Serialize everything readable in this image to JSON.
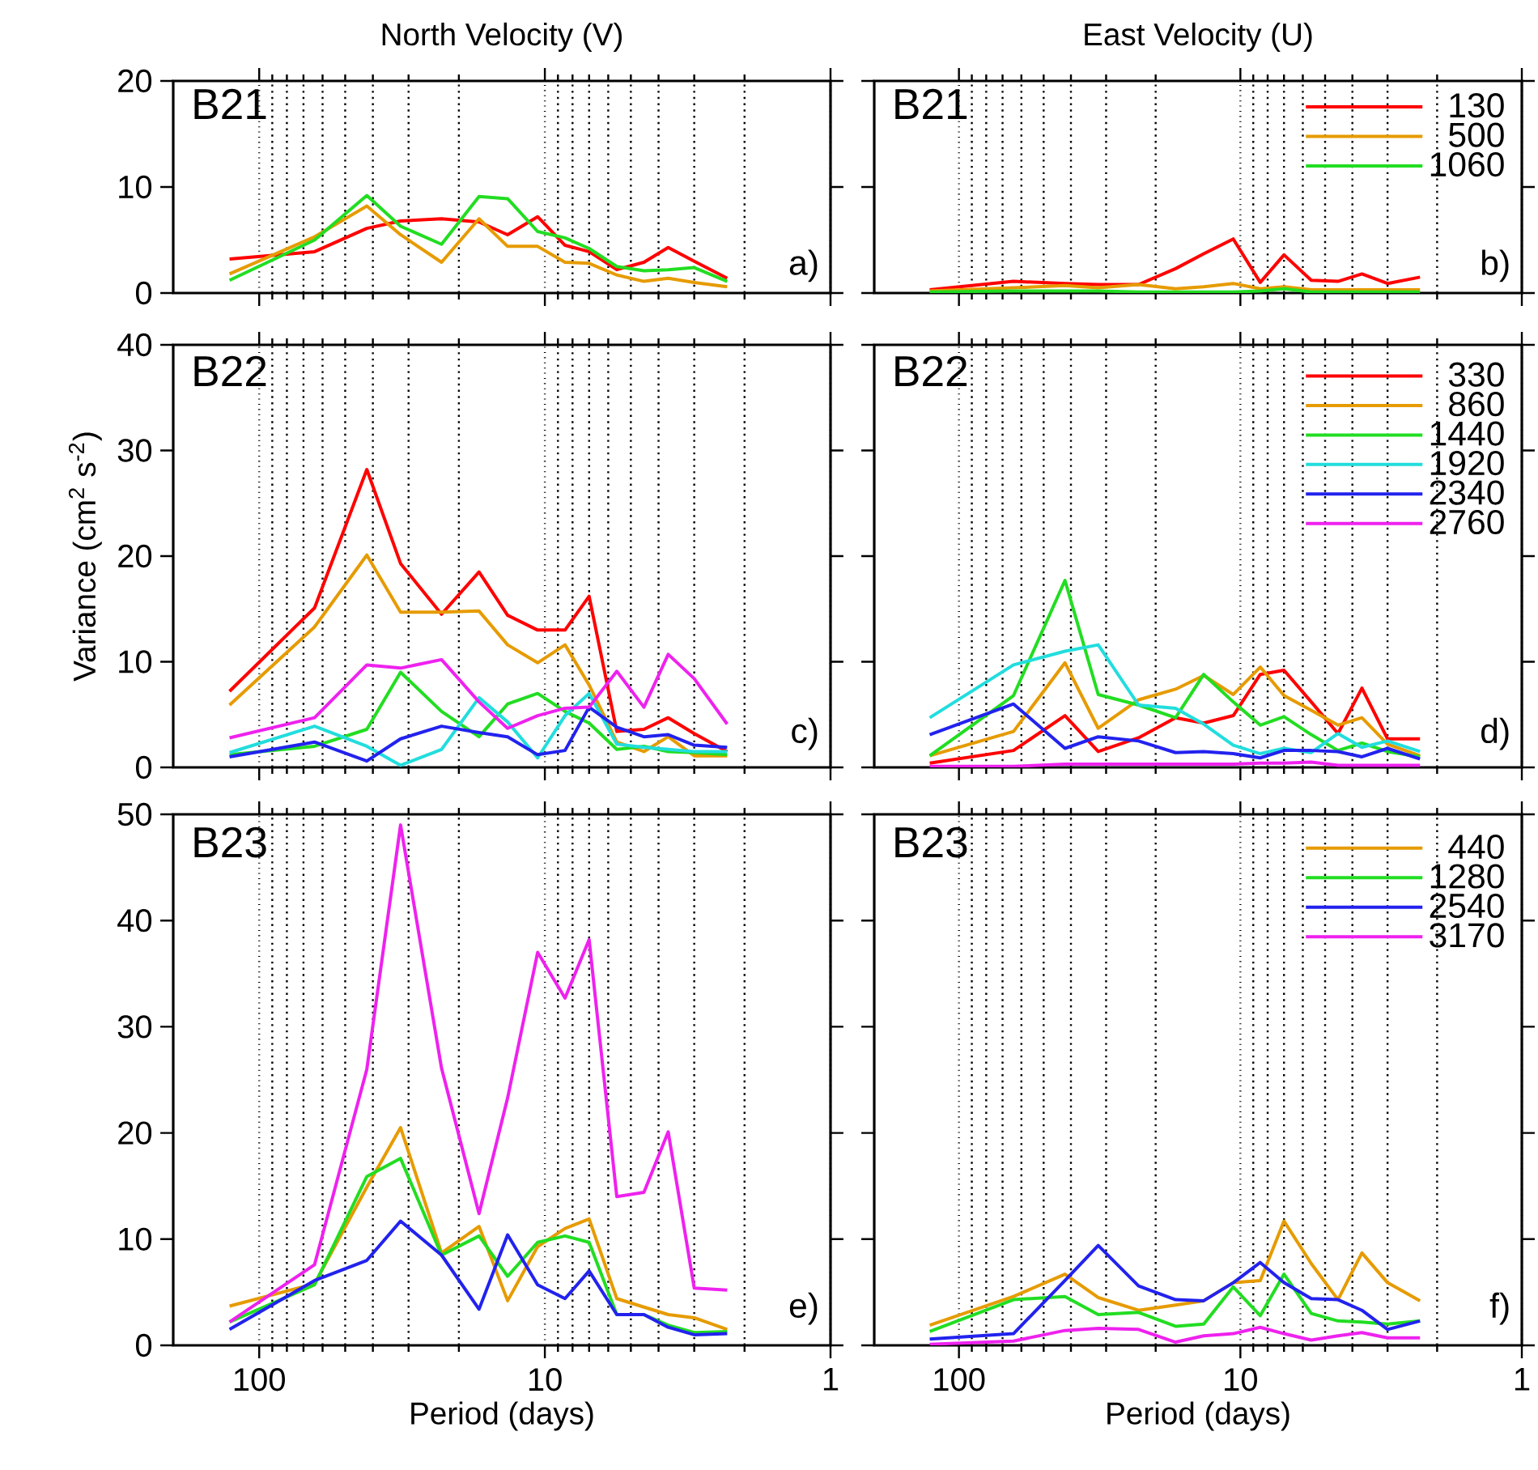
{
  "chart_data": [
    {
      "type": "line",
      "title": "North Velocity (V)",
      "x": [
        127,
        64,
        42,
        32,
        23,
        17,
        13.5,
        10.6,
        8.5,
        7,
        5.6,
        4.5,
        3.7,
        3,
        2.3
      ],
      "xlim": [
        200,
        1
      ],
      "xticks": [
        100,
        10,
        1
      ],
      "ylim": [
        0,
        20
      ],
      "yticks": [
        0,
        10,
        20
      ],
      "log": "x",
      "grid": "x",
      "tick_labels": "y",
      "annotations": [
        "B21",
        "a)"
      ],
      "series": [
        {
          "color": "#ff0000",
          "values": [
            3.2,
            3.9,
            6.1,
            6.8,
            7.0,
            6.7,
            5.5,
            7.2,
            4.5,
            3.9,
            2.2,
            2.9,
            4.3,
            3.0,
            1.4
          ]
        },
        {
          "color": "#e69b00",
          "values": [
            1.8,
            5.3,
            8.2,
            5.5,
            2.9,
            7.0,
            4.4,
            4.4,
            2.9,
            2.8,
            1.7,
            1.1,
            1.4,
            1.0,
            0.6
          ]
        },
        {
          "color": "#22dd22",
          "values": [
            1.2,
            5.0,
            9.2,
            6.3,
            4.6,
            9.1,
            8.9,
            5.8,
            5.2,
            4.2,
            2.5,
            2.1,
            2.2,
            2.4,
            1.1
          ]
        }
      ]
    },
    {
      "type": "line",
      "title": "East Velocity (U)",
      "x": [
        127,
        64,
        42,
        32,
        23,
        17,
        13.5,
        10.6,
        8.5,
        7,
        5.6,
        4.5,
        3.7,
        3,
        2.3
      ],
      "xlim": [
        200,
        1
      ],
      "xticks": [
        100,
        10,
        1
      ],
      "ylim": [
        0,
        20
      ],
      "yticks": [
        0,
        10,
        20
      ],
      "log": "x",
      "grid": "x",
      "tick_labels": false,
      "legend": "top right",
      "annotations": [
        "B21",
        "b)"
      ],
      "series": [
        {
          "name": "130",
          "color": "#ff0000",
          "values": [
            0.3,
            1.1,
            0.9,
            0.8,
            0.8,
            2.3,
            3.7,
            5.1,
            1.0,
            3.6,
            1.2,
            1.1,
            1.8,
            0.9,
            1.5
          ]
        },
        {
          "name": "500",
          "color": "#e69b00",
          "values": [
            0.2,
            0.5,
            0.7,
            0.5,
            0.8,
            0.4,
            0.6,
            0.9,
            0.4,
            0.6,
            0.3,
            0.3,
            0.3,
            0.3,
            0.3
          ]
        },
        {
          "name": "1060",
          "color": "#22dd22",
          "values": [
            0.1,
            0.2,
            0.2,
            0.2,
            0.1,
            0.1,
            0.1,
            0.1,
            0.2,
            0.4,
            0.1,
            0.1,
            0.1,
            0.1,
            0.1
          ]
        }
      ]
    },
    {
      "type": "line",
      "ylabel": "Variance (cm$^{2}$ s$^{-2}$)",
      "x": [
        127,
        64,
        42,
        32,
        23,
        17,
        13.5,
        10.6,
        8.5,
        7,
        5.6,
        4.5,
        3.7,
        3,
        2.3
      ],
      "xlim": [
        200,
        1
      ],
      "xticks": [
        100,
        10,
        1
      ],
      "ylim": [
        0,
        40
      ],
      "yticks": [
        0,
        10,
        20,
        30,
        40
      ],
      "log": "x",
      "grid": "x",
      "tick_labels": "y",
      "annotations": [
        "B22",
        "c)"
      ],
      "series": [
        {
          "color": "#ff0000",
          "values": [
            7.2,
            15.1,
            28.2,
            19.3,
            14.5,
            18.5,
            14.4,
            13.0,
            13.0,
            16.2,
            3.4,
            3.6,
            4.7,
            3.2,
            1.5
          ]
        },
        {
          "color": "#e69b00",
          "values": [
            5.9,
            13.3,
            20.1,
            14.7,
            14.7,
            14.8,
            11.6,
            9.9,
            11.6,
            7.8,
            2.4,
            1.5,
            2.9,
            1.1,
            1.1
          ]
        },
        {
          "color": "#22dd22",
          "values": [
            1.2,
            2.0,
            3.6,
            9.0,
            5.3,
            2.9,
            6.0,
            7.0,
            5.3,
            4.2,
            1.7,
            2.0,
            1.5,
            1.4,
            1.2
          ]
        },
        {
          "color": "#22dddd",
          "values": [
            1.4,
            3.9,
            2.0,
            0.2,
            1.7,
            6.6,
            4.3,
            0.9,
            4.9,
            7.0,
            2.2,
            1.9,
            1.7,
            1.5,
            1.5
          ]
        },
        {
          "color": "#2222ee",
          "values": [
            1.0,
            2.4,
            0.6,
            2.7,
            3.9,
            3.3,
            2.9,
            1.2,
            1.6,
            5.7,
            3.8,
            2.9,
            3.1,
            2.1,
            1.9
          ]
        },
        {
          "color": "#ee22ee",
          "values": [
            2.8,
            4.7,
            9.7,
            9.4,
            10.2,
            6.2,
            3.7,
            4.9,
            5.6,
            5.7,
            9.1,
            5.7,
            10.7,
            8.4,
            4.1
          ]
        }
      ]
    },
    {
      "type": "line",
      "x": [
        127,
        64,
        42,
        32,
        23,
        17,
        13.5,
        10.6,
        8.5,
        7,
        5.6,
        4.5,
        3.7,
        3,
        2.3
      ],
      "xlim": [
        200,
        1
      ],
      "xticks": [
        100,
        10,
        1
      ],
      "ylim": [
        0,
        40
      ],
      "yticks": [
        0,
        10,
        20,
        30,
        40
      ],
      "log": "x",
      "grid": "x",
      "tick_labels": false,
      "legend": "top right",
      "annotations": [
        "B22",
        "d)"
      ],
      "series": [
        {
          "name": "330",
          "color": "#ff0000",
          "values": [
            0.4,
            1.6,
            4.9,
            1.5,
            2.8,
            4.7,
            4.2,
            4.9,
            8.8,
            9.2,
            6.2,
            3.2,
            7.5,
            2.7,
            2.7
          ]
        },
        {
          "name": "860",
          "color": "#e69b00",
          "values": [
            1.1,
            3.4,
            9.9,
            3.7,
            6.4,
            7.4,
            8.7,
            6.9,
            9.5,
            6.8,
            5.4,
            4.0,
            4.7,
            2.2,
            1.1
          ]
        },
        {
          "name": "1440",
          "color": "#22dd22",
          "values": [
            1.1,
            6.8,
            17.7,
            6.9,
            5.9,
            4.7,
            8.8,
            6.2,
            4.0,
            4.8,
            3.1,
            1.6,
            2.3,
            1.5,
            1.0
          ]
        },
        {
          "name": "1920",
          "color": "#22dddd",
          "values": [
            4.7,
            9.7,
            11.0,
            11.6,
            5.9,
            5.6,
            4.1,
            2.1,
            1.3,
            1.8,
            1.4,
            3.2,
            1.9,
            2.5,
            1.5
          ]
        },
        {
          "name": "2340",
          "color": "#2222ee",
          "values": [
            3.1,
            6.0,
            1.8,
            2.9,
            2.5,
            1.4,
            1.5,
            1.3,
            0.9,
            1.6,
            1.6,
            1.5,
            1.0,
            1.8,
            0.8
          ]
        },
        {
          "name": "2760",
          "color": "#ee22ee",
          "values": [
            0.1,
            0.1,
            0.3,
            0.3,
            0.3,
            0.3,
            0.3,
            0.3,
            0.4,
            0.4,
            0.5,
            0.2,
            0.2,
            0.2,
            0.2
          ]
        }
      ]
    },
    {
      "type": "line",
      "xlabel": "Period (days)",
      "x": [
        127,
        64,
        42,
        32,
        23,
        17,
        13.5,
        10.6,
        8.5,
        7,
        5.6,
        4.5,
        3.7,
        3,
        2.3
      ],
      "xlim": [
        200,
        1
      ],
      "xticks": [
        100,
        10,
        1
      ],
      "ylim": [
        0,
        50
      ],
      "yticks": [
        0,
        10,
        20,
        30,
        40,
        50
      ],
      "log": "x",
      "grid": "x",
      "annotations": [
        "B23",
        "e)"
      ],
      "series": [
        {
          "color": "#e69b00",
          "values": [
            3.7,
            5.8,
            14.9,
            20.5,
            8.7,
            11.2,
            4.2,
            9.3,
            11.0,
            11.9,
            4.4,
            3.6,
            2.9,
            2.6,
            1.5
          ]
        },
        {
          "color": "#22dd22",
          "values": [
            2.2,
            5.7,
            15.9,
            17.6,
            8.5,
            10.3,
            6.5,
            9.7,
            10.3,
            9.7,
            2.9,
            2.9,
            1.9,
            1.2,
            1.3
          ]
        },
        {
          "color": "#2222ee",
          "values": [
            1.5,
            6.1,
            8.0,
            11.7,
            8.5,
            3.4,
            10.4,
            5.7,
            4.4,
            7.0,
            2.9,
            2.9,
            1.7,
            1.0,
            1.1
          ]
        },
        {
          "color": "#ee22ee",
          "values": [
            2.2,
            7.6,
            26.0,
            49.0,
            26.1,
            12.4,
            23.3,
            37.0,
            32.7,
            38.2,
            14.0,
            14.4,
            20.1,
            5.4,
            5.2
          ]
        }
      ]
    },
    {
      "type": "line",
      "xlabel": "Period (days)",
      "x": [
        127,
        64,
        42,
        32,
        23,
        17,
        13.5,
        10.6,
        8.5,
        7,
        5.6,
        4.5,
        3.7,
        3,
        2.3
      ],
      "xlim": [
        200,
        1
      ],
      "xticks": [
        100,
        10,
        1
      ],
      "ylim": [
        0,
        50
      ],
      "yticks": [
        0,
        10,
        20,
        30,
        40,
        50
      ],
      "log": "x",
      "grid": "x",
      "tick_labels": "x",
      "legend": "top right",
      "annotations": [
        "B23",
        "f)"
      ],
      "series": [
        {
          "name": "440",
          "color": "#e69b00",
          "values": [
            1.9,
            4.6,
            6.7,
            4.5,
            3.3,
            3.8,
            4.2,
            5.9,
            6.1,
            11.7,
            7.7,
            4.3,
            8.7,
            5.9,
            4.2
          ]
        },
        {
          "name": "1280",
          "color": "#22dd22",
          "values": [
            1.3,
            4.3,
            4.6,
            2.9,
            3.1,
            1.8,
            2.0,
            5.5,
            2.8,
            6.7,
            3.0,
            2.3,
            2.2,
            2.0,
            2.3
          ]
        },
        {
          "name": "2540",
          "color": "#2222ee",
          "values": [
            0.6,
            1.1,
            6.1,
            9.4,
            5.6,
            4.3,
            4.2,
            5.9,
            7.8,
            5.9,
            4.4,
            4.3,
            3.3,
            1.5,
            2.3
          ]
        },
        {
          "name": "3170",
          "color": "#ee22ee",
          "values": [
            0.1,
            0.4,
            1.4,
            1.6,
            1.5,
            0.3,
            0.9,
            1.1,
            1.7,
            1.1,
            0.5,
            0.9,
            1.2,
            0.7,
            0.7
          ]
        }
      ]
    }
  ]
}
